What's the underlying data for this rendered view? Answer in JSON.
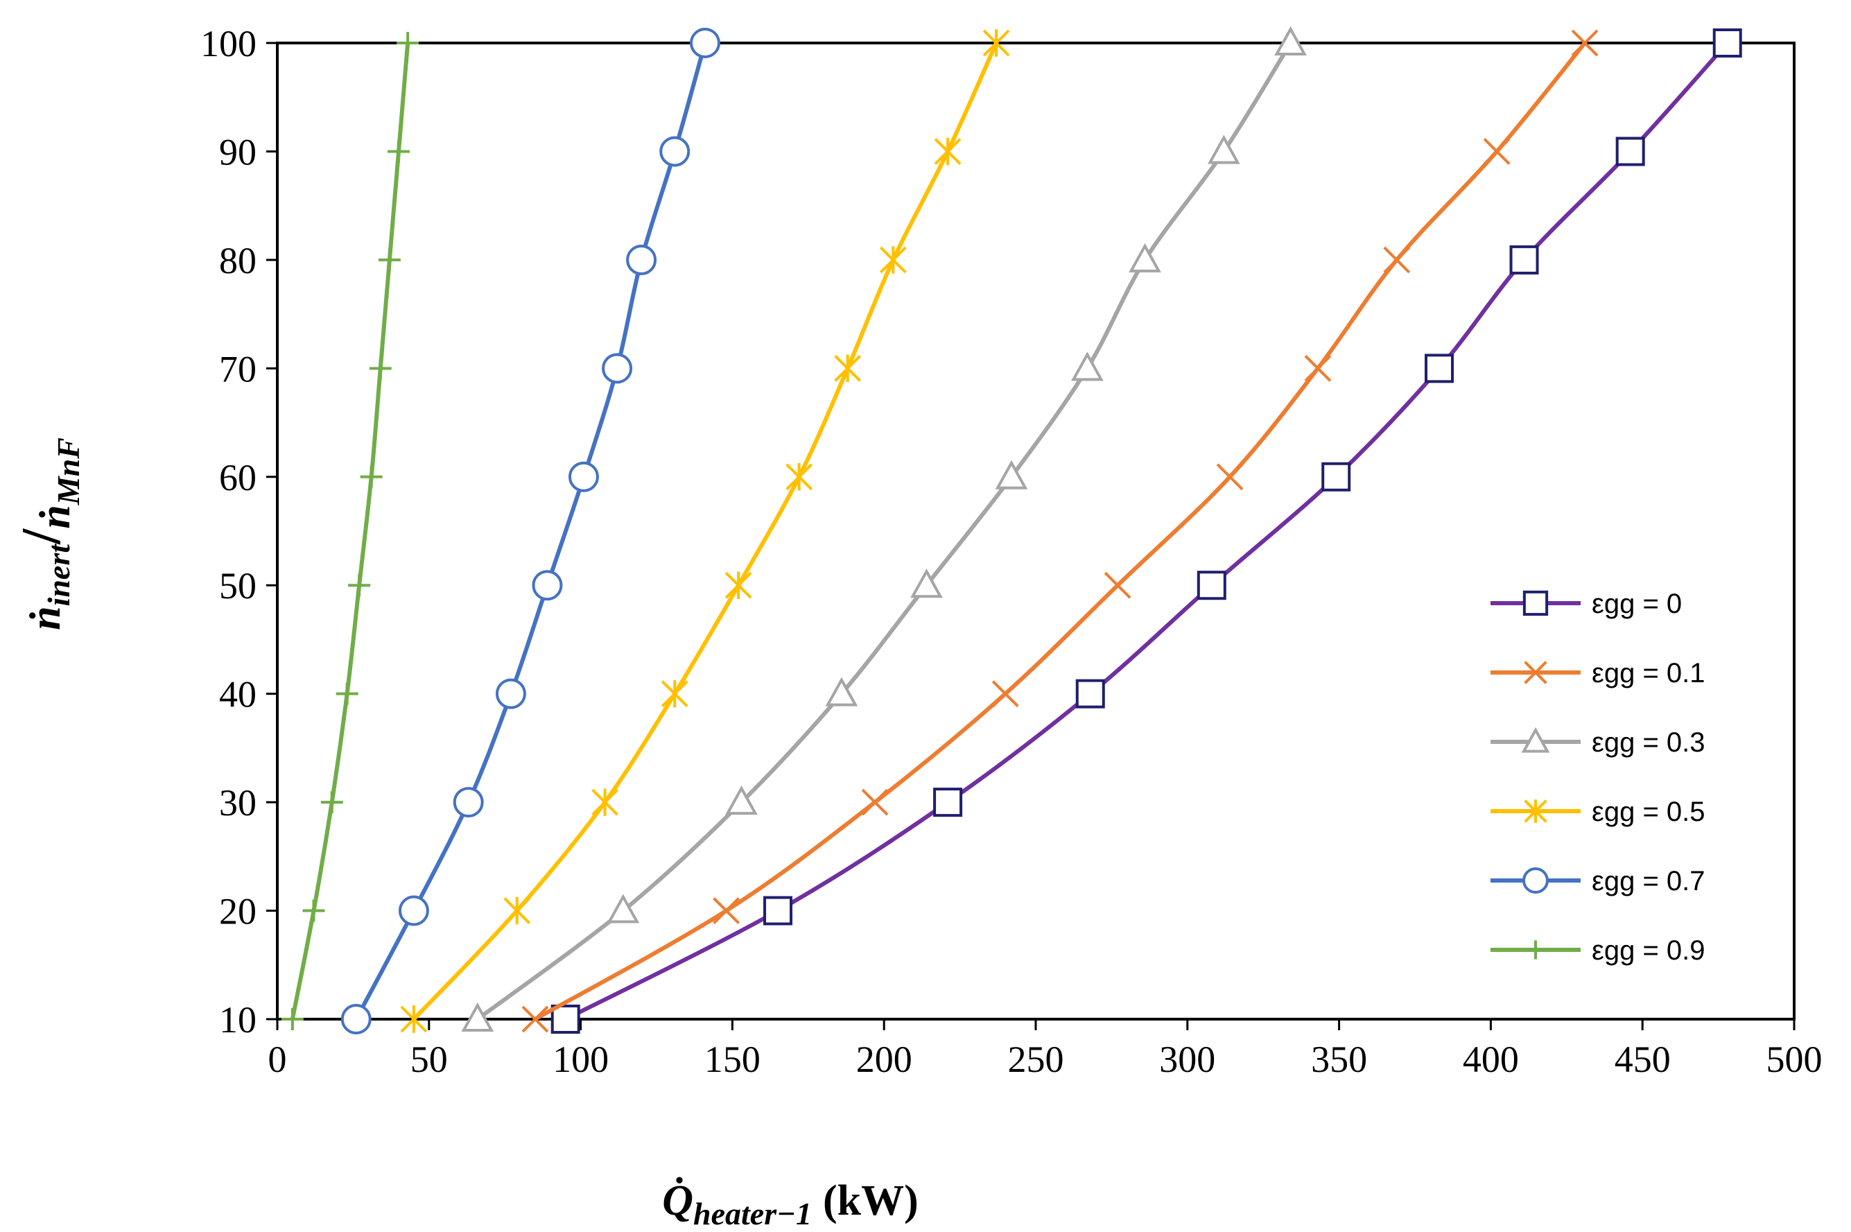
{
  "chart_data": {
    "type": "line",
    "title": "",
    "xlabel": {
      "main": "Q̇",
      "sub": "heater−1",
      "unit": "(kW)"
    },
    "ylabel": {
      "num_main": "ṅ",
      "num_sub": "inert",
      "den_main": "ṅ",
      "den_sub": "MnF"
    },
    "xlim": [
      0,
      500
    ],
    "ylim": [
      10,
      100
    ],
    "x_ticks": [
      0,
      50,
      100,
      150,
      200,
      250,
      300,
      350,
      400,
      450,
      500
    ],
    "y_ticks": [
      10,
      20,
      30,
      40,
      50,
      60,
      70,
      80,
      90,
      100
    ],
    "grid": false,
    "legend_position": "right",
    "series": [
      {
        "name": "εgg = 0",
        "color": "#7030A0",
        "marker_color": "#1F1F6F",
        "marker": "square",
        "points": [
          [
            95,
            10
          ],
          [
            165,
            20
          ],
          [
            221,
            30
          ],
          [
            268,
            40
          ],
          [
            308,
            50
          ],
          [
            349,
            60
          ],
          [
            383,
            70
          ],
          [
            411,
            80
          ],
          [
            446,
            90
          ],
          [
            478,
            100
          ]
        ]
      },
      {
        "name": "εgg = 0.1",
        "color": "#ED7D31",
        "marker_color": "#ED7D31",
        "marker": "x",
        "points": [
          [
            85,
            10
          ],
          [
            148,
            20
          ],
          [
            197,
            30
          ],
          [
            240,
            40
          ],
          [
            277,
            50
          ],
          [
            314,
            60
          ],
          [
            343,
            70
          ],
          [
            369,
            80
          ],
          [
            402,
            90
          ],
          [
            431,
            100
          ]
        ]
      },
      {
        "name": "εgg = 0.3",
        "color": "#A5A5A5",
        "marker_color": "#A5A5A5",
        "marker": "triangle",
        "points": [
          [
            66,
            10
          ],
          [
            114,
            20
          ],
          [
            153,
            30
          ],
          [
            186,
            40
          ],
          [
            214,
            50
          ],
          [
            242,
            60
          ],
          [
            267,
            70
          ],
          [
            286,
            80
          ],
          [
            312,
            90
          ],
          [
            334,
            100
          ]
        ]
      },
      {
        "name": "εgg = 0.5",
        "color": "#FFC000",
        "marker_color": "#FFC000",
        "marker": "star",
        "points": [
          [
            45,
            10
          ],
          [
            79,
            20
          ],
          [
            108,
            30
          ],
          [
            131,
            40
          ],
          [
            152,
            50
          ],
          [
            172,
            60
          ],
          [
            188,
            70
          ],
          [
            203,
            80
          ],
          [
            221,
            90
          ],
          [
            237,
            100
          ]
        ]
      },
      {
        "name": "εgg = 0.7",
        "color": "#4472C4",
        "marker_color": "#4472C4",
        "marker": "circle",
        "points": [
          [
            26,
            10
          ],
          [
            45,
            20
          ],
          [
            63,
            30
          ],
          [
            77,
            40
          ],
          [
            89,
            50
          ],
          [
            101,
            60
          ],
          [
            112,
            70
          ],
          [
            120,
            80
          ],
          [
            131,
            90
          ],
          [
            141,
            100
          ]
        ]
      },
      {
        "name": "εgg = 0.9",
        "color": "#70AD47",
        "marker_color": "#70AD47",
        "marker": "plus",
        "points": [
          [
            5,
            10
          ],
          [
            12,
            20
          ],
          [
            18,
            30
          ],
          [
            23,
            40
          ],
          [
            27,
            50
          ],
          [
            31,
            60
          ],
          [
            34,
            70
          ],
          [
            37,
            80
          ],
          [
            40,
            90
          ],
          [
            43,
            100
          ]
        ]
      }
    ]
  }
}
